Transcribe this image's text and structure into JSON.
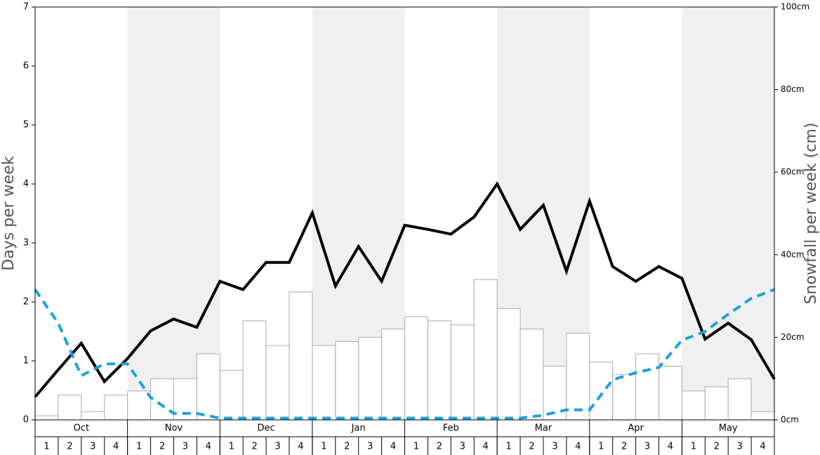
{
  "chart_data": {
    "type": "bar-line",
    "y_label": "Days per week",
    "y2_label": "Snowfall per week (cm)",
    "months": [
      "Oct",
      "Nov",
      "Dec",
      "Jan",
      "Feb",
      "Mar",
      "Apr",
      "May"
    ],
    "weeks": [
      1,
      2,
      3,
      4
    ],
    "ylim": [
      0,
      7
    ],
    "yticks": [
      0,
      1,
      2,
      3,
      4,
      5,
      6,
      7
    ],
    "y2lim": [
      0,
      100
    ],
    "y2ticks": [
      {
        "value": 0,
        "label": "0cm"
      },
      {
        "value": 20,
        "label": "20cm"
      },
      {
        "value": 40,
        "label": "40cm"
      },
      {
        "value": 60,
        "label": "60cm"
      },
      {
        "value": 80,
        "label": "80cm"
      },
      {
        "value": 100,
        "label": "100cm"
      }
    ],
    "series": [
      {
        "kind": "bar",
        "axis": "y2",
        "color": "#ffffff",
        "values": [
          1,
          6,
          2,
          6,
          7,
          10,
          10,
          16,
          12,
          24,
          18,
          31,
          18,
          19,
          20,
          22,
          25,
          24,
          23,
          34,
          27,
          22,
          13,
          21,
          14,
          11,
          16,
          13,
          7,
          8,
          10,
          2
        ]
      },
      {
        "kind": "line",
        "color": "#000000",
        "values": [
          0.39,
          0.85,
          1.3,
          0.65,
          1.04,
          1.51,
          1.71,
          1.57,
          2.35,
          2.21,
          2.67,
          2.67,
          3.51,
          2.27,
          2.94,
          2.35,
          3.3,
          3.23,
          3.15,
          3.44,
          4.0,
          3.23,
          3.64,
          2.52,
          3.71,
          2.6,
          2.35,
          2.6,
          2.4,
          1.37,
          1.64,
          1.36,
          0.69
        ]
      },
      {
        "kind": "dashed-line",
        "color": "#1ba1e2",
        "values": [
          2.21,
          1.64,
          0.75,
          0.95,
          0.95,
          0.38,
          0.11,
          0.11,
          0.03,
          0.03,
          0.03,
          0.03,
          0.03,
          0.03,
          0.03,
          0.03,
          0.03,
          0.03,
          0.03,
          0.03,
          0.03,
          0.03,
          0.08,
          0.17,
          0.17,
          0.68,
          0.8,
          0.89,
          1.35,
          1.5,
          1.79,
          2.06,
          2.21
        ]
      }
    ]
  }
}
